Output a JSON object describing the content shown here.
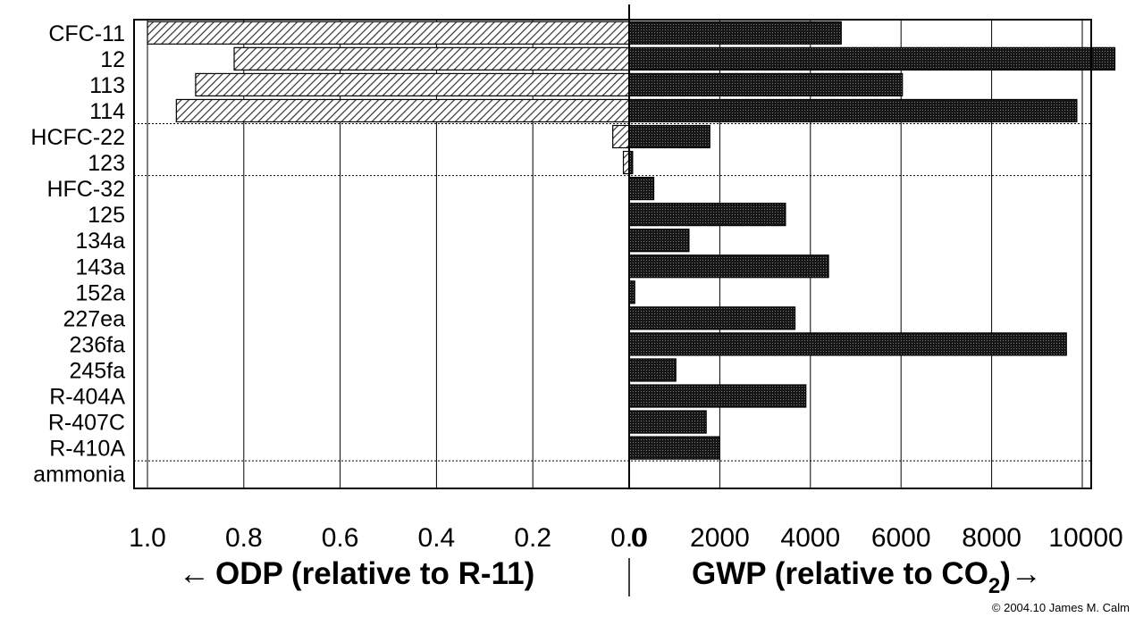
{
  "chart_data": {
    "type": "bar",
    "orientation": "horizontal",
    "categories": [
      "CFC-11",
      "12",
      "113",
      "114",
      "HCFC-22",
      "123",
      "HFC-32",
      "125",
      "134a",
      "143a",
      "152a",
      "227ea",
      "236fa",
      "245fa",
      "R-404A",
      "R-407C",
      "R-410A",
      "ammonia"
    ],
    "group_separators_after": [
      "114",
      "123",
      "R-410A"
    ],
    "series": [
      {
        "name": "ODP",
        "side": "left",
        "values": [
          1.0,
          0.82,
          0.9,
          0.94,
          0.034,
          0.012,
          0,
          0,
          0,
          0,
          0,
          0,
          0,
          0,
          0,
          0,
          0,
          0
        ],
        "xlim": [
          0,
          1.0
        ],
        "ticks": [
          "1.0",
          "0.8",
          "0.6",
          "0.4",
          "0.2",
          "0.0"
        ],
        "fill": "hatched",
        "color": "#555555"
      },
      {
        "name": "GWP",
        "side": "right",
        "values": [
          4680,
          10720,
          6030,
          9880,
          1780,
          76,
          543,
          3450,
          1320,
          4400,
          122,
          3660,
          9650,
          1030,
          3900,
          1700,
          2000,
          0
        ],
        "xlim": [
          0,
          10700
        ],
        "ticks": [
          "0",
          "2000",
          "4000",
          "6000",
          "8000",
          "10000"
        ],
        "fill": "dotted-dark",
        "color": "#111111"
      }
    ],
    "xlabel_left_prefix": "←",
    "xlabel_left": "ODP (relative to R-11)",
    "xlabel_right_prefix": "GWP (relative to CO",
    "xlabel_right_sub": "2",
    "xlabel_right_suffix": ")→",
    "grid": true
  },
  "copyright": "© 2004.10 James M. Calm"
}
